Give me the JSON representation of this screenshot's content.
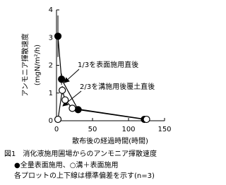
{
  "chart_data": {
    "type": "scatter",
    "y_label": "アンモニア揮散速度",
    "y_unit": "(mgN/m²/h)",
    "x_label": "散布後の経過時間(時間)",
    "annotations": [
      "1/3を表面施用直後",
      "2/3を溝施用後覆土直後"
    ],
    "caption": [
      "図1　消化液施用圃場からのアンモニア揮散速度",
      "●全量表面施用、○溝＋表面施用",
      "各プロットの上下線は標準偏差を示す(n=3)"
    ],
    "series": [
      {
        "name": "全量表面施用",
        "color": "#000000",
        "filled": true,
        "x": [
          2,
          7,
          30,
          122
        ],
        "values": [
          3.05,
          1.5,
          0.4,
          0.05
        ],
        "errors": [
          0.75,
          0.2,
          0.1,
          0.02
        ]
      },
      {
        "name": "溝＋表面施用",
        "color": "#000000",
        "filled": false,
        "x": [
          2,
          8,
          12,
          22,
          125
        ],
        "values": [
          0.05,
          1.1,
          0.75,
          0.45,
          0.05
        ],
        "errors": [
          0.02,
          0.15,
          0.1,
          0.1,
          0.02
        ]
      }
    ],
    "xlim": [
      0,
      150
    ],
    "xticks": [
      0,
      50,
      100,
      150
    ],
    "ylim": [
      0,
      4
    ],
    "yticks": [
      0,
      1,
      2,
      3,
      4
    ]
  }
}
